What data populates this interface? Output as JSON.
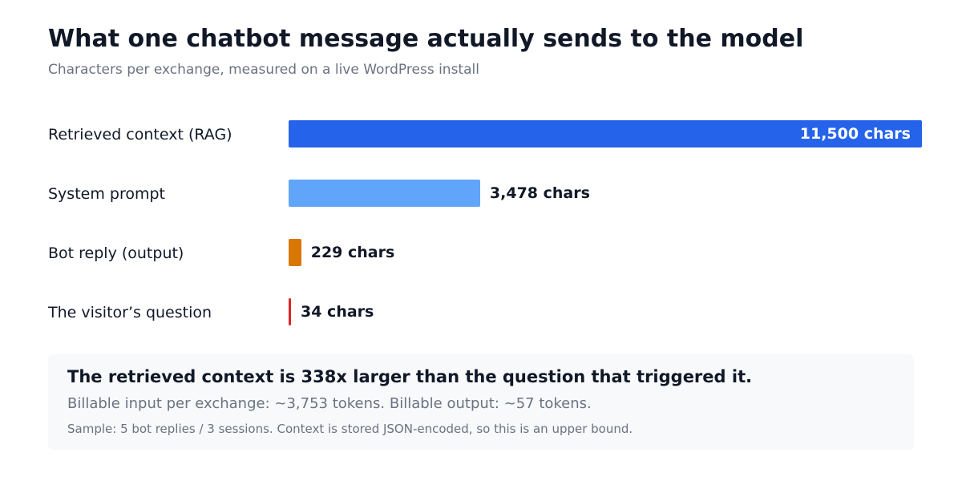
{
  "chart_data": {
    "type": "bar",
    "orientation": "horizontal",
    "title": "What one chatbot message actually sends to the model",
    "subtitle": "Characters per exchange, measured on a live WordPress install",
    "categories": [
      "Retrieved context (RAG)",
      "System prompt",
      "Bot reply (output)",
      "The visitor’s question"
    ],
    "values": [
      11500,
      3478,
      229,
      34
    ],
    "value_labels": [
      "11,500 chars",
      "3,478 chars",
      "229 chars",
      "34 chars"
    ],
    "colors": [
      "#2563eb",
      "#60a5fa",
      "#d97706",
      "#dc2626"
    ],
    "xlim": [
      0,
      11500
    ],
    "grid": false,
    "legend": "none"
  },
  "callout": {
    "headline": "The retrieved context is 338x larger than the question that triggered it.",
    "line": "Billable input per exchange: ~3,753 tokens. Billable output: ~57 tokens.",
    "note": "Sample: 5 bot replies / 3 sessions. Context is stored JSON-encoded, so this is an upper bound."
  }
}
